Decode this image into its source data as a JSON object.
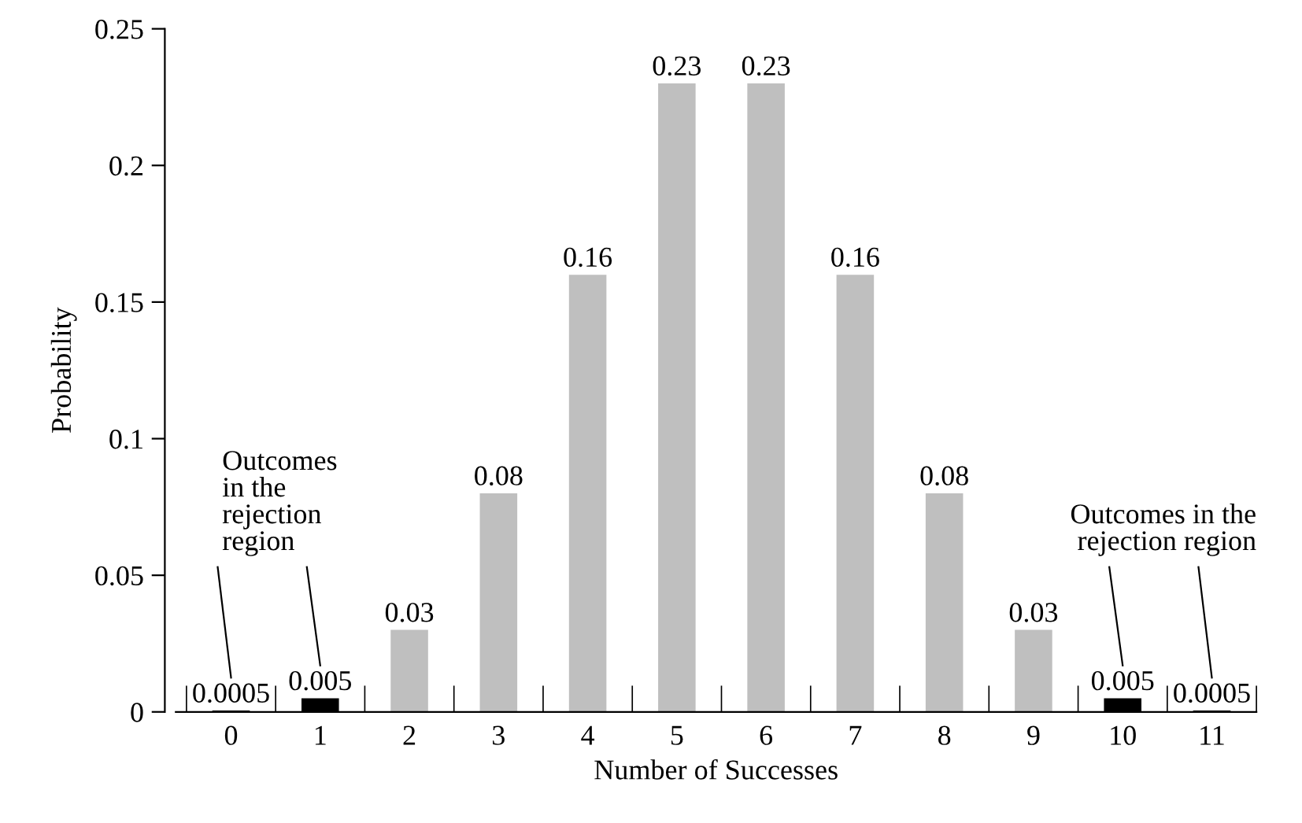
{
  "chart_data": {
    "type": "bar",
    "xlabel": "Number of Successes",
    "ylabel": "Probability",
    "categories": [
      "0",
      "1",
      "2",
      "3",
      "4",
      "5",
      "6",
      "7",
      "8",
      "9",
      "10",
      "11"
    ],
    "values": [
      0.0005,
      0.005,
      0.03,
      0.08,
      0.16,
      0.23,
      0.23,
      0.16,
      0.08,
      0.03,
      0.005,
      0.0005
    ],
    "colors": [
      "#000000",
      "#000000",
      "#bfbfbf",
      "#bfbfbf",
      "#bfbfbf",
      "#bfbfbf",
      "#bfbfbf",
      "#bfbfbf",
      "#bfbfbf",
      "#bfbfbf",
      "#000000",
      "#000000"
    ],
    "data_labels": true,
    "ylim": [
      0,
      0.25
    ],
    "yticks": [
      0,
      0.05,
      0.1,
      0.15,
      0.2,
      0.25
    ],
    "grid": false,
    "legend": false,
    "annotations": [
      "Outcomes\nin the\nrejection\nregion",
      "Outcomes in the\nrejection region"
    ]
  }
}
